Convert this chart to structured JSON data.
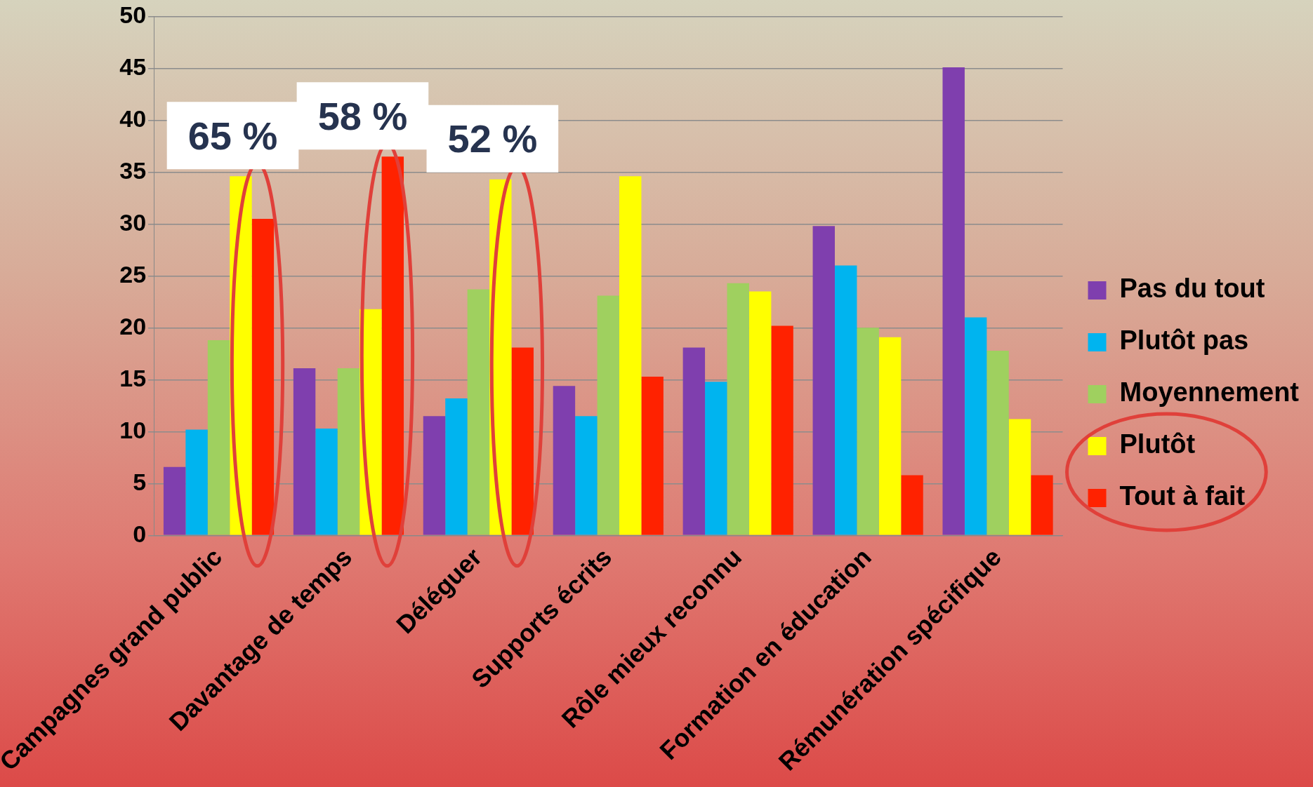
{
  "chart_data": {
    "type": "bar",
    "categories": [
      "Campagnes grand public",
      "Davantage de temps",
      "Déléguer",
      "Supports écrits",
      "Rôle mieux reconnu",
      "Formation en éducation",
      "Rémunération spécifique"
    ],
    "series": [
      {
        "name": "Pas du tout",
        "color": "#7f3fae",
        "values": [
          6.6,
          16.1,
          11.5,
          14.4,
          18.1,
          29.8,
          45.1
        ]
      },
      {
        "name": "Plutôt pas",
        "color": "#00b4ef",
        "values": [
          10.2,
          10.3,
          13.2,
          11.5,
          14.8,
          26.0,
          21.0
        ]
      },
      {
        "name": "Moyennement",
        "color": "#9fd05f",
        "values": [
          18.8,
          16.1,
          23.7,
          23.1,
          24.3,
          20.0,
          17.8
        ]
      },
      {
        "name": "Plutôt",
        "color": "#ffff00",
        "values": [
          34.6,
          21.8,
          34.3,
          34.6,
          23.5,
          19.1,
          11.2
        ]
      },
      {
        "name": "Tout à fait",
        "color": "#ff2200",
        "values": [
          30.5,
          36.5,
          18.1,
          15.3,
          20.2,
          5.8,
          5.8
        ]
      }
    ],
    "ylim": [
      0,
      50
    ],
    "yticks": [
      0,
      5,
      10,
      15,
      20,
      25,
      30,
      35,
      40,
      45,
      50
    ],
    "grid": "y",
    "legend": "right",
    "annotations": [
      "65 %",
      "58 %",
      "52 %"
    ]
  }
}
